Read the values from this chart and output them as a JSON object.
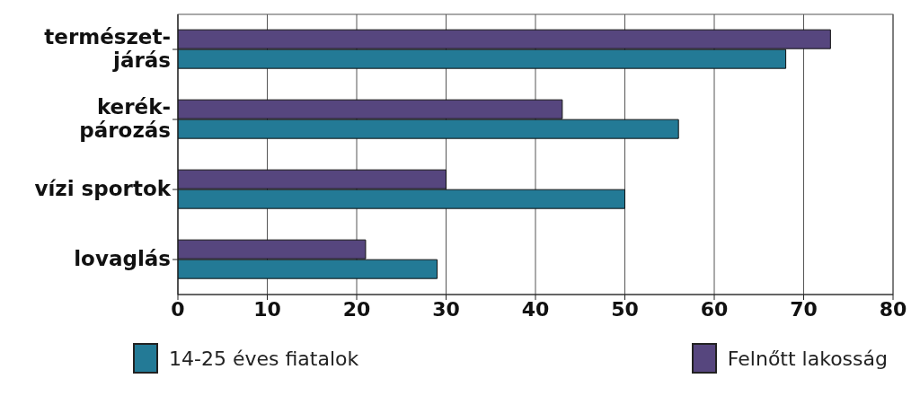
{
  "chart_data": {
    "type": "bar",
    "orientation": "horizontal",
    "categories": [
      "természet-járás",
      "kerék-pározás",
      "vízi sportok",
      "lovaglás"
    ],
    "series": [
      {
        "name": "14-25 éves fiatalok",
        "color": "#237a96",
        "values": [
          68,
          56,
          50,
          29
        ]
      },
      {
        "name": "Felnőtt lakosság",
        "color": "#56467e",
        "values": [
          73,
          43,
          30,
          21
        ]
      }
    ],
    "xlim": [
      0,
      80
    ],
    "xticks": [
      0,
      10,
      20,
      30,
      40,
      50,
      60,
      70,
      80
    ],
    "grid": "x",
    "legend": "bottom"
  }
}
